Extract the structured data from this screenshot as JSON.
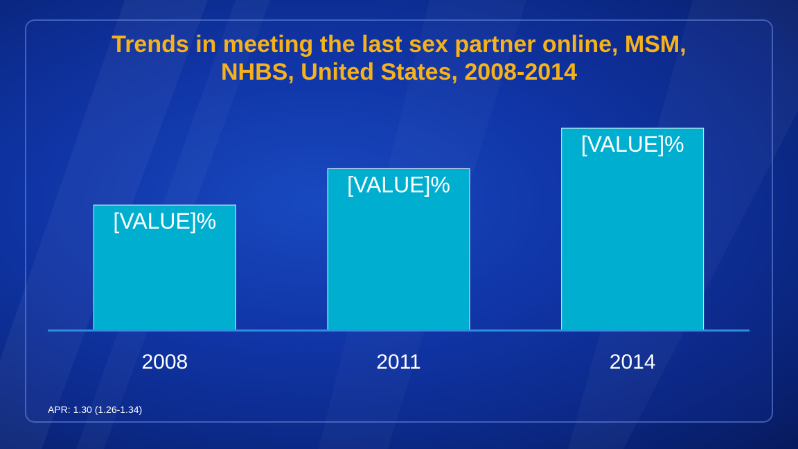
{
  "title_line1": "Trends in meeting the last sex partner online, MSM,",
  "title_line2": "NHBS, United States, 2008-2014",
  "footnote": "APR: 1.30 (1.26-1.34)",
  "colors": {
    "title": "#f6b21b",
    "bar_fill": "#00afd0",
    "bar_border": "#e6f6fb",
    "axis": "#2e8fe0",
    "text": "#ffffff"
  },
  "chart_data": {
    "type": "bar",
    "title": "Trends in meeting the last sex partner online, MSM, NHBS, United States, 2008-2014",
    "categories": [
      "2008",
      "2011",
      "2014"
    ],
    "values": [
      31,
      40,
      50
    ],
    "data_labels": [
      "[VALUE]%",
      "[VALUE]%",
      "[VALUE]%"
    ],
    "xlabel": "",
    "ylabel": "",
    "ylim": [
      0,
      56
    ],
    "grid": false,
    "legend": "none"
  }
}
